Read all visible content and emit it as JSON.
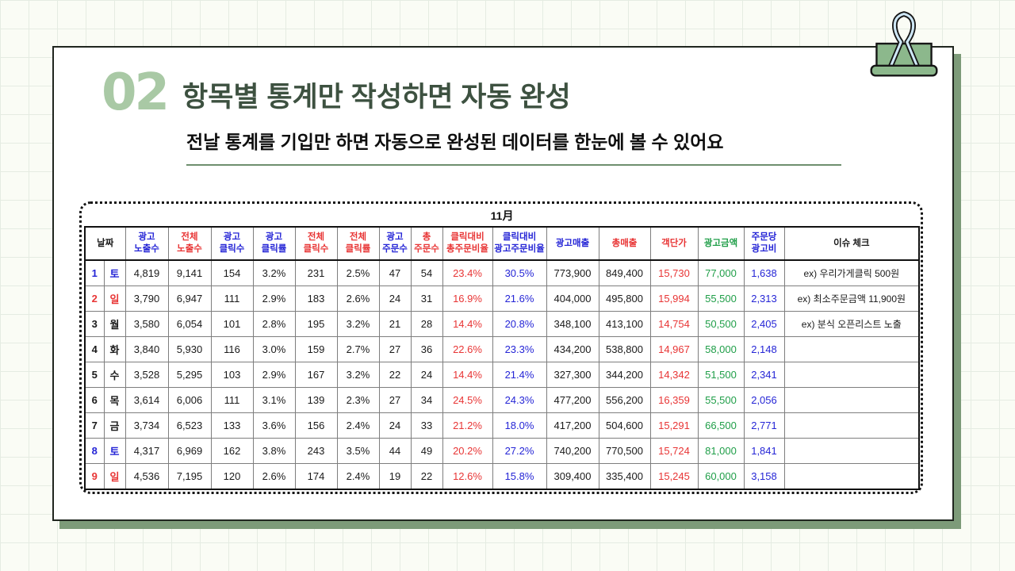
{
  "slide": {
    "number": "02",
    "title": "항목별 통계만 작성하면 자동 완성",
    "subtitle": "전날 통계를 기입만 하면 자동으로 완성된 데이터를 한눈에 볼 수 있어요"
  },
  "colors": {
    "accent_light_green": "#a9c9a5",
    "accent_dark_green": "#3d5140",
    "divider_green": "#6e8f6e",
    "card_shadow_green": "#7d9b79",
    "clip_green": "#8cb88c",
    "clip_wire_blue": "#cfe8f7",
    "text_blue": "#2525d6",
    "text_red": "#e83535",
    "text_green": "#1f9e48",
    "text_black": "#1a1a1a"
  },
  "table": {
    "month_label": "11月",
    "columns": [
      {
        "lines": [
          "날짜"
        ],
        "color": "black",
        "span": 2
      },
      {
        "lines": [
          "광고",
          "노출수"
        ],
        "color": "blue"
      },
      {
        "lines": [
          "전체",
          "노출수"
        ],
        "color": "red"
      },
      {
        "lines": [
          "광고",
          "클릭수"
        ],
        "color": "blue"
      },
      {
        "lines": [
          "광고",
          "클릭률"
        ],
        "color": "blue"
      },
      {
        "lines": [
          "전체",
          "클릭수"
        ],
        "color": "red"
      },
      {
        "lines": [
          "전체",
          "클릭률"
        ],
        "color": "red"
      },
      {
        "lines": [
          "광고",
          "주문수"
        ],
        "color": "blue"
      },
      {
        "lines": [
          "총",
          "주문수"
        ],
        "color": "red"
      },
      {
        "lines": [
          "클릭대비",
          "총주문비율"
        ],
        "color": "red"
      },
      {
        "lines": [
          "클릭대비",
          "광고주문비율"
        ],
        "color": "blue"
      },
      {
        "lines": [
          "광고매출"
        ],
        "color": "blue"
      },
      {
        "lines": [
          "총매출"
        ],
        "color": "red"
      },
      {
        "lines": [
          "객단가"
        ],
        "color": "red"
      },
      {
        "lines": [
          "광고금액"
        ],
        "color": "green"
      },
      {
        "lines": [
          "주문당",
          "광고비"
        ],
        "color": "blue"
      },
      {
        "lines": [
          "이슈 체크"
        ],
        "color": "black"
      }
    ],
    "value_colors": [
      "black",
      "black",
      "black",
      "black",
      "black",
      "black",
      "black",
      "black",
      "red",
      "blue",
      "black",
      "black",
      "red",
      "green",
      "blue"
    ],
    "rows": [
      {
        "no": "1",
        "day": "토",
        "tone": "blue",
        "values": [
          "4,819",
          "9,141",
          "154",
          "3.2%",
          "231",
          "2.5%",
          "47",
          "54",
          "23.4%",
          "30.5%",
          "773,900",
          "849,400",
          "15,730",
          "77,000",
          "1,638"
        ],
        "issue": "ex) 우리가게클릭 500원"
      },
      {
        "no": "2",
        "day": "일",
        "tone": "red",
        "values": [
          "3,790",
          "6,947",
          "111",
          "2.9%",
          "183",
          "2.6%",
          "24",
          "31",
          "16.9%",
          "21.6%",
          "404,000",
          "495,800",
          "15,994",
          "55,500",
          "2,313"
        ],
        "issue": "ex) 최소주문금액 11,900원"
      },
      {
        "no": "3",
        "day": "월",
        "tone": "black",
        "values": [
          "3,580",
          "6,054",
          "101",
          "2.8%",
          "195",
          "3.2%",
          "21",
          "28",
          "14.4%",
          "20.8%",
          "348,100",
          "413,100",
          "14,754",
          "50,500",
          "2,405"
        ],
        "issue": "ex) 분식 오픈리스트 노출"
      },
      {
        "no": "4",
        "day": "화",
        "tone": "black",
        "values": [
          "3,840",
          "5,930",
          "116",
          "3.0%",
          "159",
          "2.7%",
          "27",
          "36",
          "22.6%",
          "23.3%",
          "434,200",
          "538,800",
          "14,967",
          "58,000",
          "2,148"
        ],
        "issue": ""
      },
      {
        "no": "5",
        "day": "수",
        "tone": "black",
        "values": [
          "3,528",
          "5,295",
          "103",
          "2.9%",
          "167",
          "3.2%",
          "22",
          "24",
          "14.4%",
          "21.4%",
          "327,300",
          "344,200",
          "14,342",
          "51,500",
          "2,341"
        ],
        "issue": ""
      },
      {
        "no": "6",
        "day": "목",
        "tone": "black",
        "values": [
          "3,614",
          "6,006",
          "111",
          "3.1%",
          "139",
          "2.3%",
          "27",
          "34",
          "24.5%",
          "24.3%",
          "477,200",
          "556,200",
          "16,359",
          "55,500",
          "2,056"
        ],
        "issue": ""
      },
      {
        "no": "7",
        "day": "금",
        "tone": "black",
        "values": [
          "3,734",
          "6,523",
          "133",
          "3.6%",
          "156",
          "2.4%",
          "24",
          "33",
          "21.2%",
          "18.0%",
          "417,200",
          "504,600",
          "15,291",
          "66,500",
          "2,771"
        ],
        "issue": ""
      },
      {
        "no": "8",
        "day": "토",
        "tone": "blue",
        "values": [
          "4,317",
          "6,969",
          "162",
          "3.8%",
          "243",
          "3.5%",
          "44",
          "49",
          "20.2%",
          "27.2%",
          "740,200",
          "770,500",
          "15,724",
          "81,000",
          "1,841"
        ],
        "issue": ""
      },
      {
        "no": "9",
        "day": "일",
        "tone": "red",
        "values": [
          "4,536",
          "7,195",
          "120",
          "2.6%",
          "174",
          "2.4%",
          "19",
          "22",
          "12.6%",
          "15.8%",
          "309,400",
          "335,400",
          "15,245",
          "60,000",
          "3,158"
        ],
        "issue": ""
      }
    ]
  }
}
